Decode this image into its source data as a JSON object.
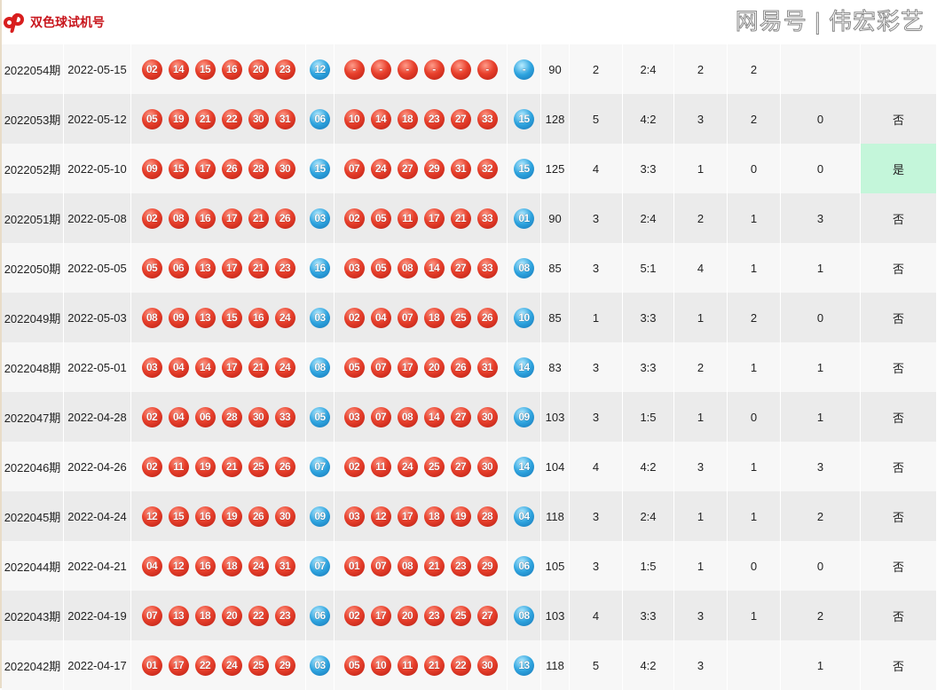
{
  "header": {
    "title": "双色球试机号",
    "logo": "dp-logo"
  },
  "colors": {
    "red_ball": "#e8402c",
    "blue_ball": "#2ea4df",
    "highlight": "#c4f6da",
    "title": "#c8161d"
  },
  "rows": [
    {
      "period": "2022054期",
      "date": "2022-05-15",
      "test_red": [
        "02",
        "14",
        "15",
        "16",
        "20",
        "23"
      ],
      "test_blue": "12",
      "draw_red": [
        "-",
        "-",
        "-",
        "-",
        "-",
        "-"
      ],
      "draw_blue": "-",
      "sum": "90",
      "c1": "2",
      "ratio": "2:4",
      "c2": "2",
      "c3": "2",
      "c4": "",
      "match": ""
    },
    {
      "period": "2022053期",
      "date": "2022-05-12",
      "test_red": [
        "05",
        "19",
        "21",
        "22",
        "30",
        "31"
      ],
      "test_blue": "06",
      "draw_red": [
        "10",
        "14",
        "18",
        "23",
        "27",
        "33"
      ],
      "draw_blue": "15",
      "sum": "128",
      "c1": "5",
      "ratio": "4:2",
      "c2": "3",
      "c3": "2",
      "c4": "0",
      "match": "否"
    },
    {
      "period": "2022052期",
      "date": "2022-05-10",
      "test_red": [
        "09",
        "15",
        "17",
        "26",
        "28",
        "30"
      ],
      "test_blue": "15",
      "draw_red": [
        "07",
        "24",
        "27",
        "29",
        "31",
        "32"
      ],
      "draw_blue": "15",
      "sum": "125",
      "c1": "4",
      "ratio": "3:3",
      "c2": "1",
      "c3": "0",
      "c4": "0",
      "match": "是"
    },
    {
      "period": "2022051期",
      "date": "2022-05-08",
      "test_red": [
        "02",
        "08",
        "16",
        "17",
        "21",
        "26"
      ],
      "test_blue": "03",
      "draw_red": [
        "02",
        "05",
        "11",
        "17",
        "21",
        "33"
      ],
      "draw_blue": "01",
      "sum": "90",
      "c1": "3",
      "ratio": "2:4",
      "c2": "2",
      "c3": "1",
      "c4": "3",
      "match": "否"
    },
    {
      "period": "2022050期",
      "date": "2022-05-05",
      "test_red": [
        "05",
        "06",
        "13",
        "17",
        "21",
        "23"
      ],
      "test_blue": "16",
      "draw_red": [
        "03",
        "05",
        "08",
        "14",
        "27",
        "33"
      ],
      "draw_blue": "08",
      "sum": "85",
      "c1": "3",
      "ratio": "5:1",
      "c2": "4",
      "c3": "1",
      "c4": "1",
      "match": "否"
    },
    {
      "period": "2022049期",
      "date": "2022-05-03",
      "test_red": [
        "08",
        "09",
        "13",
        "15",
        "16",
        "24"
      ],
      "test_blue": "03",
      "draw_red": [
        "02",
        "04",
        "07",
        "18",
        "25",
        "26"
      ],
      "draw_blue": "10",
      "sum": "85",
      "c1": "1",
      "ratio": "3:3",
      "c2": "1",
      "c3": "2",
      "c4": "0",
      "match": "否"
    },
    {
      "period": "2022048期",
      "date": "2022-05-01",
      "test_red": [
        "03",
        "04",
        "14",
        "17",
        "21",
        "24"
      ],
      "test_blue": "08",
      "draw_red": [
        "05",
        "07",
        "17",
        "20",
        "26",
        "31"
      ],
      "draw_blue": "14",
      "sum": "83",
      "c1": "3",
      "ratio": "3:3",
      "c2": "2",
      "c3": "1",
      "c4": "1",
      "match": "否"
    },
    {
      "period": "2022047期",
      "date": "2022-04-28",
      "test_red": [
        "02",
        "04",
        "06",
        "28",
        "30",
        "33"
      ],
      "test_blue": "05",
      "draw_red": [
        "03",
        "07",
        "08",
        "14",
        "27",
        "30"
      ],
      "draw_blue": "09",
      "sum": "103",
      "c1": "3",
      "ratio": "1:5",
      "c2": "1",
      "c3": "0",
      "c4": "1",
      "match": "否"
    },
    {
      "period": "2022046期",
      "date": "2022-04-26",
      "test_red": [
        "02",
        "11",
        "19",
        "21",
        "25",
        "26"
      ],
      "test_blue": "07",
      "draw_red": [
        "02",
        "11",
        "24",
        "25",
        "27",
        "30"
      ],
      "draw_blue": "14",
      "sum": "104",
      "c1": "4",
      "ratio": "4:2",
      "c2": "3",
      "c3": "1",
      "c4": "3",
      "match": "否"
    },
    {
      "period": "2022045期",
      "date": "2022-04-24",
      "test_red": [
        "12",
        "15",
        "16",
        "19",
        "26",
        "30"
      ],
      "test_blue": "09",
      "draw_red": [
        "03",
        "12",
        "17",
        "18",
        "19",
        "28"
      ],
      "draw_blue": "04",
      "sum": "118",
      "c1": "3",
      "ratio": "2:4",
      "c2": "1",
      "c3": "1",
      "c4": "2",
      "match": "否"
    },
    {
      "period": "2022044期",
      "date": "2022-04-21",
      "test_red": [
        "04",
        "12",
        "16",
        "18",
        "24",
        "31"
      ],
      "test_blue": "07",
      "draw_red": [
        "01",
        "07",
        "08",
        "21",
        "23",
        "29"
      ],
      "draw_blue": "06",
      "sum": "105",
      "c1": "3",
      "ratio": "1:5",
      "c2": "1",
      "c3": "0",
      "c4": "0",
      "match": "否"
    },
    {
      "period": "2022043期",
      "date": "2022-04-19",
      "test_red": [
        "07",
        "13",
        "18",
        "20",
        "22",
        "23"
      ],
      "test_blue": "06",
      "draw_red": [
        "02",
        "17",
        "20",
        "23",
        "25",
        "27"
      ],
      "draw_blue": "08",
      "sum": "103",
      "c1": "4",
      "ratio": "3:3",
      "c2": "3",
      "c3": "1",
      "c4": "2",
      "match": "否"
    },
    {
      "period": "2022042期",
      "date": "2022-04-17",
      "test_red": [
        "01",
        "17",
        "22",
        "24",
        "25",
        "29"
      ],
      "test_blue": "03",
      "draw_red": [
        "05",
        "10",
        "11",
        "21",
        "22",
        "30"
      ],
      "draw_blue": "13",
      "sum": "118",
      "c1": "5",
      "ratio": "4:2",
      "c2": "3",
      "c3": "",
      "c4": "1",
      "match": "否"
    }
  ],
  "watermark": "网易号 | 伟宏彩艺"
}
